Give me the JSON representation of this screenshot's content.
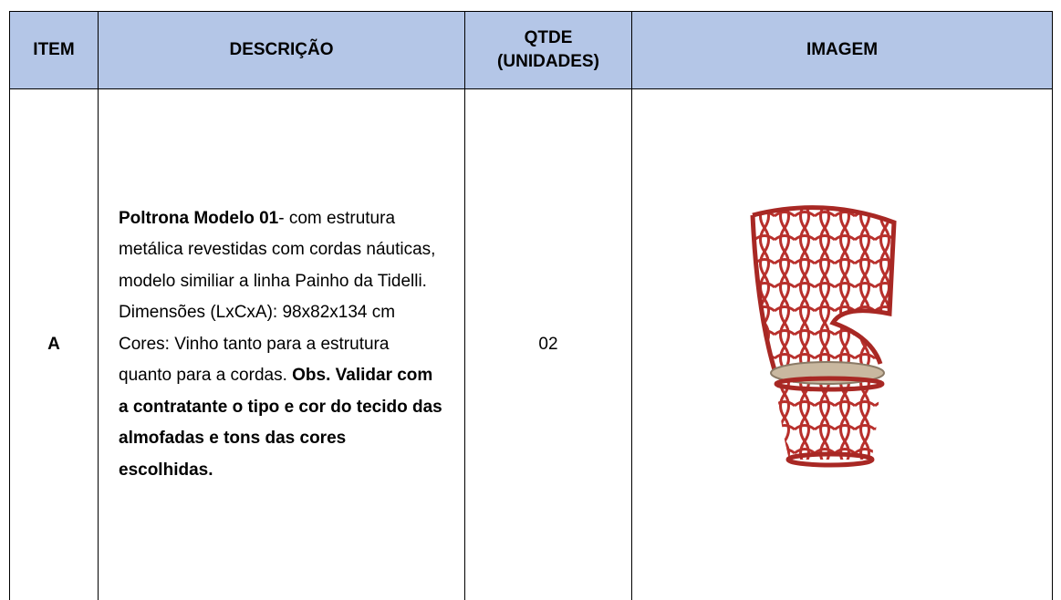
{
  "table": {
    "headers": [
      "ITEM",
      "DESCRIÇÃO",
      "QTDE\n(UNIDADES)",
      "IMAGEM"
    ],
    "rows": [
      {
        "item": "A",
        "description": {
          "title": "Poltrona Modelo 01",
          "intro": "- com estrutura metálica revestidas com   cordas náuticas, modelo similiar a linha Painho da Tidelli.",
          "dimensions": "Dimensões (LxCxA): 98x82x134 cm",
          "colors": "Cores: Vinho tanto para a estrutura quanto para a cordas.",
          "note": "Obs. Validar com a contratante o tipo e cor do tecido das almofadas e tons das cores escolhidas."
        },
        "quantity": "02"
      }
    ]
  }
}
